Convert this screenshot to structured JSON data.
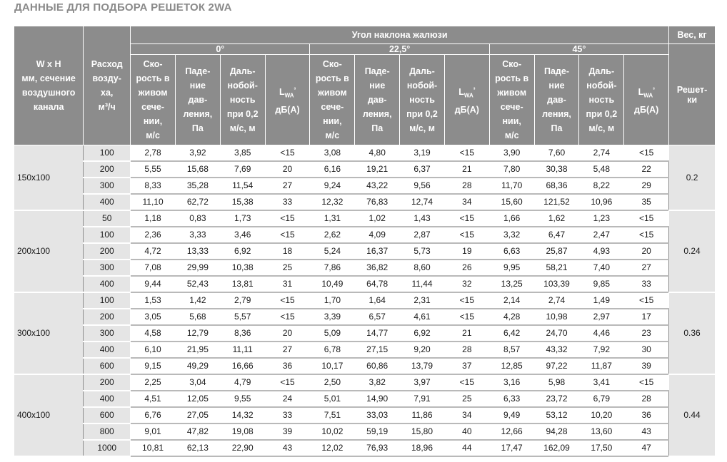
{
  "title": "ДАННЫЕ ДЛЯ ПОДБОРА РЕШЕТОК 2WA",
  "header": {
    "size_col": [
      "W x H",
      "мм, сечение",
      "воздушного",
      "канала"
    ],
    "flow_col": [
      "Расход",
      "возду-",
      "ха,",
      "м³/ч"
    ],
    "angle_group": "Угол наклона жалюзи",
    "angles": [
      "0°",
      "22,5°",
      "45°"
    ],
    "sub_cols": [
      [
        "Ско-",
        "рость в",
        "живом",
        "сече-",
        "нии,",
        "м/с"
      ],
      [
        "Паде-",
        "ние",
        "дав-",
        "ления,",
        "Па"
      ],
      [
        "Даль-",
        "нобой-",
        "ность",
        "при 0,2",
        "м/с, м"
      ],
      [
        "L",
        "WA",
        "³",
        "дБ(А)"
      ]
    ],
    "weight_group": "Вес, кг",
    "weight_col": [
      "Решет-",
      "ки"
    ]
  },
  "groups": [
    {
      "size": "150x100",
      "weight": "0.2",
      "rows": [
        [
          "100",
          "2,78",
          "3,92",
          "3,85",
          "<15",
          "3,08",
          "4,80",
          "3,19",
          "<15",
          "3,90",
          "7,60",
          "2,74",
          "<15"
        ],
        [
          "200",
          "5,55",
          "15,68",
          "7,69",
          "20",
          "6,16",
          "19,21",
          "6,37",
          "21",
          "7,80",
          "30,38",
          "5,48",
          "22"
        ],
        [
          "300",
          "8,33",
          "35,28",
          "11,54",
          "27",
          "9,24",
          "43,22",
          "9,56",
          "28",
          "11,70",
          "68,36",
          "8,22",
          "29"
        ],
        [
          "400",
          "11,10",
          "62,72",
          "15,38",
          "33",
          "12,32",
          "76,83",
          "12,74",
          "34",
          "15,60",
          "121,52",
          "10,96",
          "35"
        ]
      ]
    },
    {
      "size": "200x100",
      "weight": "0.24",
      "rows": [
        [
          "50",
          "1,18",
          "0,83",
          "1,73",
          "<15",
          "1,31",
          "1,02",
          "1,43",
          "<15",
          "1,66",
          "1,62",
          "1,23",
          "<15"
        ],
        [
          "100",
          "2,36",
          "3,33",
          "3,46",
          "<15",
          "2,62",
          "4,09",
          "2,87",
          "<15",
          "3,32",
          "6,47",
          "2,47",
          "<15"
        ],
        [
          "200",
          "4,72",
          "13,33",
          "6,92",
          "18",
          "5,24",
          "16,37",
          "5,73",
          "19",
          "6,63",
          "25,87",
          "4,93",
          "20"
        ],
        [
          "300",
          "7,08",
          "29,99",
          "10,38",
          "25",
          "7,86",
          "36,82",
          "8,60",
          "26",
          "9,95",
          "58,21",
          "7,40",
          "27"
        ],
        [
          "400",
          "9,44",
          "52,43",
          "13,81",
          "31",
          "10,49",
          "64,78",
          "11,44",
          "32",
          "13,25",
          "103,39",
          "9,85",
          "33"
        ]
      ]
    },
    {
      "size": "300x100",
      "weight": "0.36",
      "rows": [
        [
          "100",
          "1,53",
          "1,42",
          "2,79",
          "<15",
          "1,70",
          "1,64",
          "2,31",
          "<15",
          "2,14",
          "2,74",
          "1,49",
          "<15"
        ],
        [
          "200",
          "3,05",
          "5,68",
          "5,57",
          "<15",
          "3,39",
          "6,57",
          "4,61",
          "<15",
          "4,28",
          "10,98",
          "2,97",
          "17"
        ],
        [
          "300",
          "4,58",
          "12,79",
          "8,36",
          "20",
          "5,09",
          "14,77",
          "6,92",
          "21",
          "6,42",
          "24,70",
          "4,46",
          "23"
        ],
        [
          "400",
          "6,10",
          "21,95",
          "11,11",
          "27",
          "6,78",
          "27,15",
          "9,20",
          "28",
          "8,57",
          "43,32",
          "7,92",
          "30"
        ],
        [
          "600",
          "9,15",
          "49,29",
          "16,66",
          "36",
          "10,17",
          "60,86",
          "13,79",
          "37",
          "12,85",
          "97,22",
          "11,87",
          "39"
        ]
      ]
    },
    {
      "size": "400x100",
      "weight": "0.44",
      "rows": [
        [
          "200",
          "2,25",
          "3,04",
          "4,79",
          "<15",
          "2,50",
          "3,82",
          "3,97",
          "<15",
          "3,16",
          "5,98",
          "3,41",
          "<15"
        ],
        [
          "400",
          "4,51",
          "12,05",
          "9,55",
          "24",
          "5,01",
          "14,90",
          "7,91",
          "25",
          "6,33",
          "23,72",
          "6,79",
          "28"
        ],
        [
          "600",
          "6,76",
          "27,05",
          "14,32",
          "33",
          "7,51",
          "33,03",
          "11,86",
          "34",
          "9,49",
          "53,12",
          "10,20",
          "36"
        ],
        [
          "800",
          "9,01",
          "47,82",
          "19,08",
          "39",
          "10,02",
          "59,19",
          "15,80",
          "40",
          "12,66",
          "94,28",
          "13,60",
          "43"
        ],
        [
          "1000",
          "10,81",
          "62,13",
          "22,90",
          "43",
          "12,02",
          "76,93",
          "18,96",
          "44",
          "17,47",
          "162,09",
          "17,50",
          "47"
        ]
      ]
    }
  ]
}
